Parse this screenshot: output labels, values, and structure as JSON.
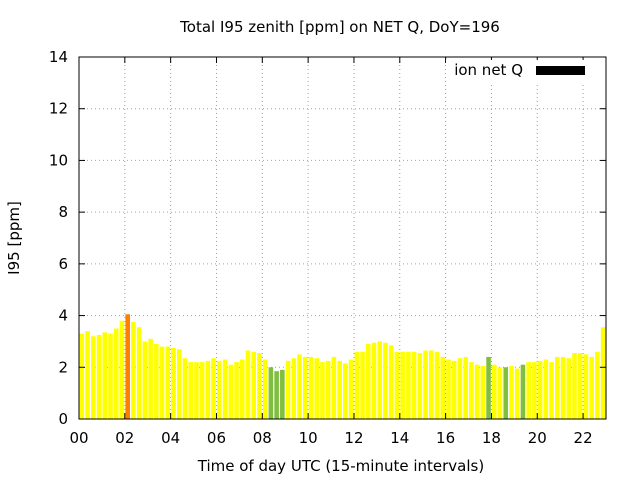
{
  "chart_data": {
    "type": "bar",
    "title": "Total I95 zenith [ppm] on NET Q, DoY=196",
    "xlabel": "Time of day UTC (15-minute intervals)",
    "ylabel": "I95 [ppm]",
    "x_unit": "hours UTC",
    "x_interval_hours": 0.25,
    "xlim": [
      0,
      22.75
    ],
    "ylim": [
      0,
      14
    ],
    "x_ticks": [
      0,
      2,
      4,
      6,
      8,
      10,
      12,
      14,
      16,
      18,
      20,
      22
    ],
    "x_tick_labels": [
      "00",
      "02",
      "04",
      "06",
      "08",
      "10",
      "12",
      "14",
      "16",
      "18",
      "20",
      "22"
    ],
    "y_ticks": [
      0,
      2,
      4,
      6,
      8,
      10,
      12,
      14
    ],
    "y_tick_labels": [
      "0",
      "2",
      "4",
      "6",
      "8",
      "10",
      "12",
      "14"
    ],
    "grid": true,
    "legend": {
      "label": "ion net Q",
      "position": "top-right",
      "color": "#000000"
    },
    "colors": {
      "default": "#ffff00",
      "elevated": "#ff7f00",
      "low": "#7fbf3f"
    },
    "x": [
      0,
      0.25,
      0.5,
      0.75,
      1,
      1.25,
      1.5,
      1.75,
      2,
      2.25,
      2.5,
      2.75,
      3,
      3.25,
      3.5,
      3.75,
      4,
      4.25,
      4.5,
      4.75,
      5,
      5.25,
      5.5,
      5.75,
      6,
      6.25,
      6.5,
      6.75,
      7,
      7.25,
      7.5,
      7.75,
      8,
      8.25,
      8.5,
      8.75,
      9,
      9.25,
      9.5,
      9.75,
      10,
      10.25,
      10.5,
      10.75,
      11,
      11.25,
      11.5,
      11.75,
      12,
      12.25,
      12.5,
      12.75,
      13,
      13.25,
      13.5,
      13.75,
      14,
      14.25,
      14.5,
      14.75,
      15,
      15.25,
      15.5,
      15.75,
      16,
      16.25,
      16.5,
      16.75,
      17,
      17.25,
      17.5,
      17.75,
      18,
      18.25,
      18.5,
      18.75,
      19,
      19.25,
      19.5,
      19.75,
      20,
      20.25,
      20.5,
      20.75,
      21,
      21.25,
      21.5,
      21.75,
      22,
      22.25,
      22.5,
      22.75
    ],
    "values": [
      3.3,
      3.4,
      3.2,
      3.25,
      3.35,
      3.3,
      3.5,
      3.8,
      4.05,
      3.75,
      3.55,
      3.0,
      3.1,
      2.9,
      2.8,
      2.8,
      2.75,
      2.7,
      2.35,
      2.2,
      2.2,
      2.2,
      2.25,
      2.35,
      2.25,
      2.3,
      2.1,
      2.2,
      2.3,
      2.65,
      2.6,
      2.55,
      2.3,
      2.0,
      1.85,
      1.9,
      2.25,
      2.35,
      2.5,
      2.4,
      2.4,
      2.35,
      2.2,
      2.25,
      2.4,
      2.25,
      2.15,
      2.3,
      2.6,
      2.6,
      2.9,
      2.95,
      3.0,
      2.95,
      2.85,
      2.6,
      2.6,
      2.6,
      2.6,
      2.55,
      2.65,
      2.65,
      2.6,
      2.4,
      2.3,
      2.25,
      2.35,
      2.4,
      2.2,
      2.1,
      2.05,
      2.4,
      2.1,
      2.0,
      2.0,
      2.05,
      1.95,
      2.1,
      2.2,
      2.2,
      2.25,
      2.3,
      2.2,
      2.4,
      2.4,
      2.35,
      2.55,
      2.55,
      2.5,
      2.4,
      2.6,
      3.55
    ],
    "levels": [
      "default",
      "default",
      "default",
      "default",
      "default",
      "default",
      "default",
      "default",
      "elevated",
      "default",
      "default",
      "default",
      "default",
      "default",
      "default",
      "default",
      "default",
      "default",
      "default",
      "default",
      "default",
      "default",
      "default",
      "default",
      "default",
      "default",
      "default",
      "default",
      "default",
      "default",
      "default",
      "default",
      "default",
      "low",
      "low",
      "low",
      "default",
      "default",
      "default",
      "default",
      "default",
      "default",
      "default",
      "default",
      "default",
      "default",
      "default",
      "default",
      "default",
      "default",
      "default",
      "default",
      "default",
      "default",
      "default",
      "default",
      "default",
      "default",
      "default",
      "default",
      "default",
      "default",
      "default",
      "default",
      "default",
      "default",
      "default",
      "default",
      "default",
      "default",
      "default",
      "low",
      "default",
      "default",
      "low",
      "default",
      "default",
      "low",
      "default",
      "default",
      "default",
      "default",
      "default",
      "default",
      "default",
      "default",
      "default",
      "default",
      "default",
      "default",
      "default",
      "default"
    ]
  }
}
